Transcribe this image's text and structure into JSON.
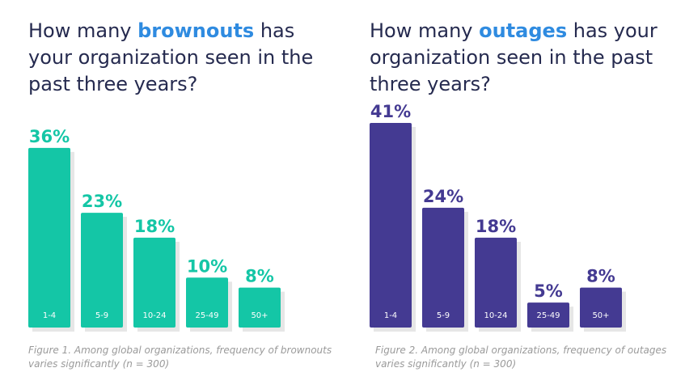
{
  "charts": [
    {
      "title_prefix": "How many ",
      "title_highlight": "brownouts",
      "title_suffix": " has your organization seen in the past three years?",
      "caption": "Figure 1. Among global organizations, frequency of brownouts varies significantly (n = 300)",
      "bar_color": "#14c6a6",
      "label_color": "#14c6a6"
    },
    {
      "title_prefix": "How many ",
      "title_highlight": "outages",
      "title_suffix": " has your organization seen in the past three years?",
      "caption": "Figure 2. Among global organizations, frequency of outages varies significantly (n = 300)",
      "bar_color": "#443a92",
      "label_color": "#443a92"
    }
  ],
  "chart_data": [
    {
      "type": "bar",
      "title": "How many brownouts has your organization seen in the past three years?",
      "categories": [
        "1-4",
        "5-9",
        "10-24",
        "25-49",
        "50+"
      ],
      "values": [
        36,
        23,
        18,
        10,
        8
      ],
      "value_labels": [
        "36%",
        "23%",
        "18%",
        "10%",
        "8%"
      ],
      "xlabel": "",
      "ylabel": "",
      "ylim": [
        0,
        41
      ]
    },
    {
      "type": "bar",
      "title": "How many outages has your organization seen in the past three years?",
      "categories": [
        "1-4",
        "5-9",
        "10-24",
        "25-49",
        "50+"
      ],
      "values": [
        41,
        24,
        18,
        5,
        8
      ],
      "value_labels": [
        "41%",
        "24%",
        "18%",
        "5%",
        "8%"
      ],
      "xlabel": "",
      "ylabel": "",
      "ylim": [
        0,
        41
      ]
    }
  ]
}
